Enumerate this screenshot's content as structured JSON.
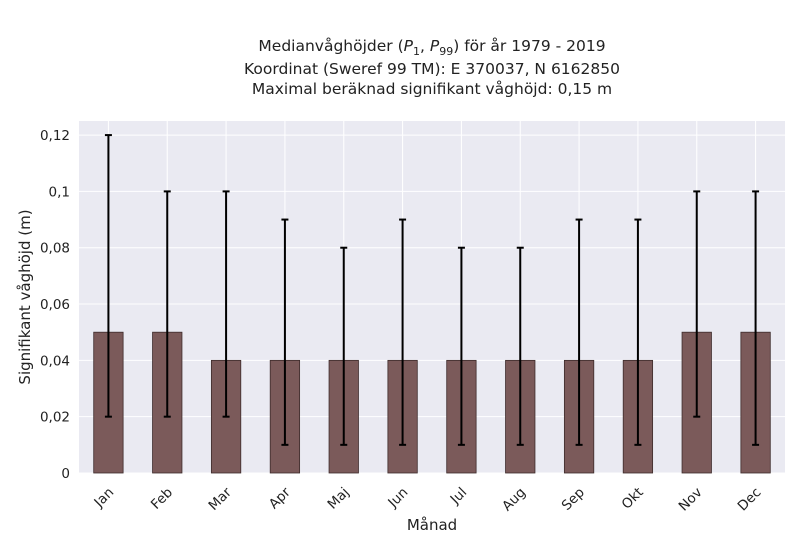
{
  "chart_data": {
    "type": "bar",
    "title_lines": [
      "Medianvåghöjder (P1, P99) för år 1979 - 2019",
      "Koordinat (Sweref 99 TM): E 370037, N 6162850",
      "Maximal beräknad signifikant våghöjd: 0,15 m"
    ],
    "xlabel": "Månad",
    "ylabel": "Signifikant våghöjd (m)",
    "categories": [
      "Jan",
      "Feb",
      "Mar",
      "Apr",
      "Maj",
      "Jun",
      "Jul",
      "Aug",
      "Sep",
      "Okt",
      "Nov",
      "Dec"
    ],
    "values": [
      0.05,
      0.05,
      0.04,
      0.04,
      0.04,
      0.04,
      0.04,
      0.04,
      0.04,
      0.04,
      0.05,
      0.05
    ],
    "p1": [
      0.02,
      0.02,
      0.02,
      0.01,
      0.01,
      0.01,
      0.01,
      0.01,
      0.01,
      0.01,
      0.02,
      0.01
    ],
    "p99": [
      0.12,
      0.1,
      0.1,
      0.09,
      0.08,
      0.09,
      0.08,
      0.08,
      0.09,
      0.09,
      0.1,
      0.1
    ],
    "ylim": [
      0,
      0.125
    ],
    "yticks": [
      0,
      0.02,
      0.04,
      0.06,
      0.08,
      0.1,
      0.12
    ],
    "ytick_labels": [
      "0",
      "0,02",
      "0,04",
      "0,06",
      "0,08",
      "0,1",
      "0,12"
    ],
    "grid": true,
    "colors": {
      "bar": "#7b5a5a",
      "bar_edge": "#3d2b2b",
      "background": "#eaeaf2",
      "grid": "#ffffff",
      "errorbar": "#000000"
    }
  }
}
